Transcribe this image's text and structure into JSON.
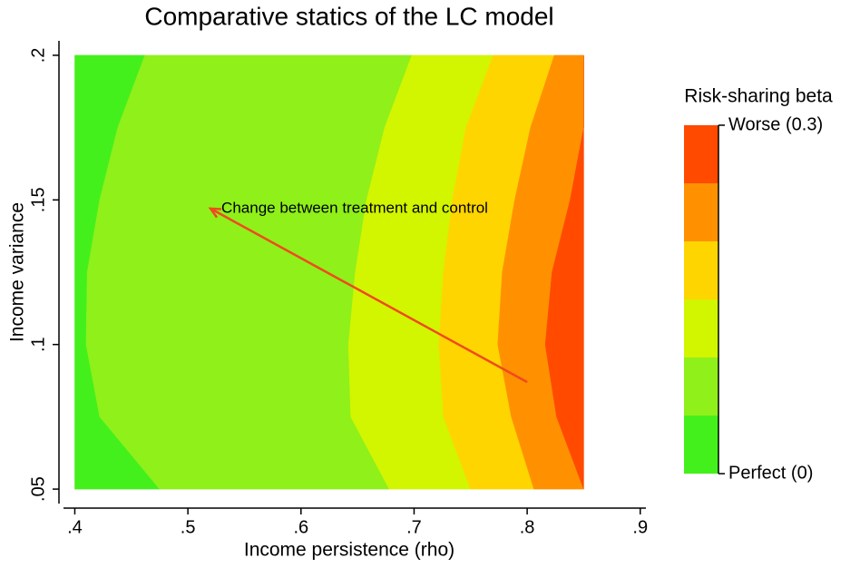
{
  "chart_data": {
    "type": "contour",
    "title": "Comparative statics of the LC model",
    "x_label": "Income persistence (rho)",
    "y_label": "Income variance",
    "xlim": [
      0.39,
      0.905
    ],
    "ylim": [
      0.045,
      0.205
    ],
    "xticks": [
      {
        "value": 0.4,
        "label": ".4"
      },
      {
        "value": 0.5,
        "label": ".5"
      },
      {
        "value": 0.6,
        "label": ".6"
      },
      {
        "value": 0.7,
        "label": ".7"
      },
      {
        "value": 0.8,
        "label": ".8"
      },
      {
        "value": 0.9,
        "label": ".9"
      }
    ],
    "yticks": [
      {
        "value": 0.05,
        "label": ".05"
      },
      {
        "value": 0.1,
        "label": ".1"
      },
      {
        "value": 0.15,
        "label": ".15"
      },
      {
        "value": 0.2,
        "label": ".2"
      }
    ],
    "contour_y": [
      0.2,
      0.175,
      0.15,
      0.125,
      0.1,
      0.075,
      0.05
    ],
    "band_edges": [
      [
        0.4,
        0.4,
        0.4,
        0.4,
        0.4,
        0.4,
        0.4
      ],
      [
        0.462,
        0.438,
        0.422,
        0.411,
        0.41,
        0.422,
        0.475
      ],
      [
        0.698,
        0.674,
        0.658,
        0.648,
        0.642,
        0.644,
        0.678
      ],
      [
        0.77,
        0.746,
        0.734,
        0.726,
        0.722,
        0.726,
        0.75
      ],
      [
        0.824,
        0.803,
        0.789,
        0.778,
        0.774,
        0.786,
        0.806
      ],
      [
        0.85,
        0.85,
        0.838,
        0.822,
        0.816,
        0.826,
        0.85
      ],
      [
        0.85,
        0.85,
        0.85,
        0.85,
        0.85,
        0.85,
        0.85
      ]
    ],
    "legend_title": "Risk-sharing beta",
    "levels": [
      0,
      0.05,
      0.1,
      0.15,
      0.2,
      0.25,
      0.3
    ],
    "colors": [
      "#44f01c",
      "#8ff01a",
      "#d2f500",
      "#ffd500",
      "#ff9100",
      "#ff4a00"
    ],
    "legend_ticks": [
      {
        "value": 0,
        "label": "Perfect (0)"
      },
      {
        "value": 0.3,
        "label": "Worse (0.3)"
      }
    ],
    "annotations": [
      {
        "text": "Change between treatment and control",
        "x": 0.52,
        "y": 0.147,
        "x_from": 0.8,
        "y_from": 0.087,
        "color": "#f04a1e"
      }
    ]
  }
}
